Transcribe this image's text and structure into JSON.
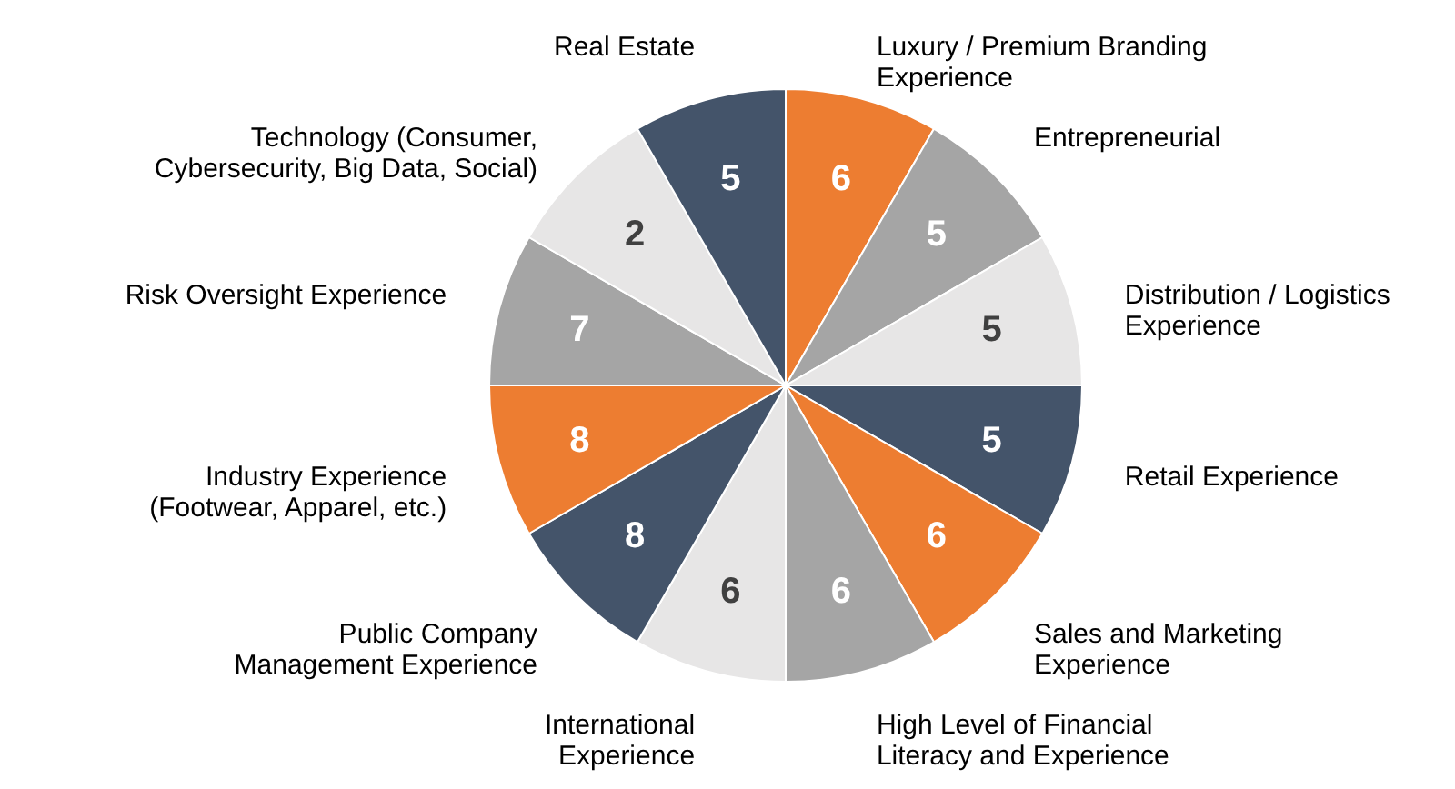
{
  "chart_data": {
    "type": "other",
    "categories": [
      "Luxury / Premium Branding\nExperience",
      "Entrepreneurial",
      "Distribution / Logistics\nExperience",
      "Retail Experience",
      "Sales and Marketing\nExperience",
      "High Level of Financial\nLiteracy and Experience",
      "International\nExperience",
      "Public Company\nManagement Experience",
      "Industry Experience\n(Footwear, Apparel, etc.)",
      "Risk Oversight Experience",
      "Technology (Consumer,\nCybersecurity, Big Data, Social)",
      "Real Estate"
    ],
    "values": [
      6,
      5,
      5,
      5,
      6,
      6,
      6,
      8,
      8,
      7,
      2,
      5
    ],
    "colors": [
      "#ed7d31",
      "#a5a5a5",
      "#e7e6e6",
      "#44546a",
      "#ed7d31",
      "#a5a5a5",
      "#e7e6e6",
      "#44546a",
      "#ed7d31",
      "#a5a5a5",
      "#e7e6e6",
      "#44546a"
    ],
    "data_labels": true
  }
}
